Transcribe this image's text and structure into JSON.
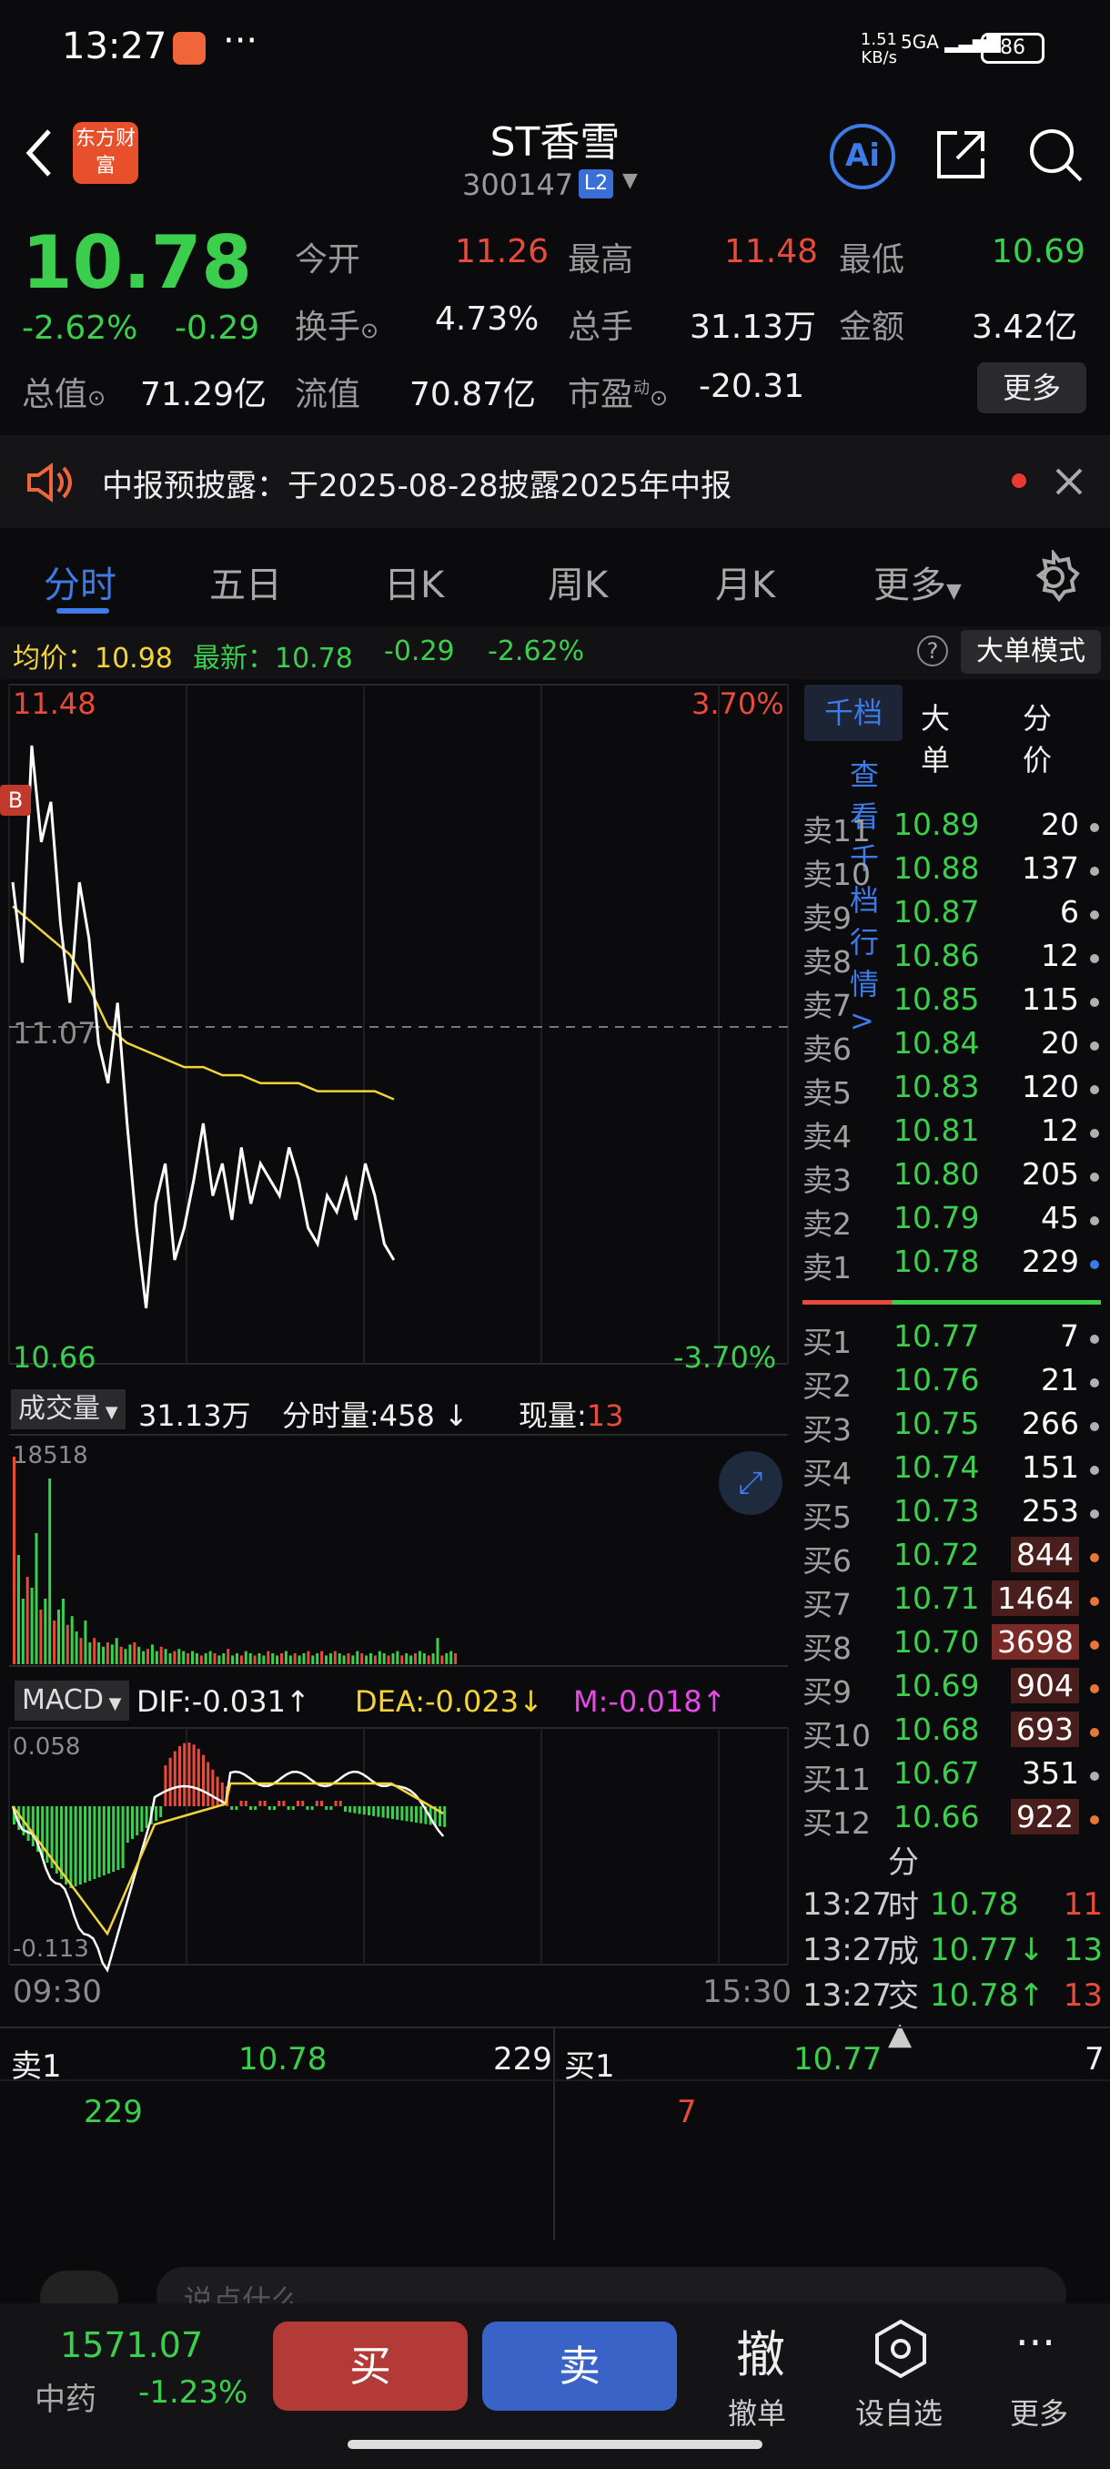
{
  "status": {
    "time": "13:27",
    "dots": "···",
    "speed_top": "1.51",
    "speed_unit": "KB/s",
    "net": "5GA",
    "battery": "86"
  },
  "header": {
    "title": "ST香雪",
    "code": "300147",
    "badge": "L2",
    "logo": "东方财富",
    "ai": "Ai"
  },
  "quote": {
    "price": "10.78",
    "pct": "-2.62%",
    "change": "-0.29",
    "open_label": "今开",
    "open": "11.26",
    "high_label": "最高",
    "high": "11.48",
    "low_label": "最低",
    "low": "10.69",
    "turnover_label": "换手",
    "turnover": "4.73%",
    "volume_label": "总手",
    "volume": "31.13万",
    "amount_label": "金额",
    "amount": "3.42亿",
    "mktcap_label": "总值",
    "mktcap": "71.29亿",
    "float_label": "流值",
    "float": "70.87亿",
    "pe_label": "市盈",
    "pe_sup": "动",
    "pe": "-20.31",
    "more": "更多"
  },
  "notice": {
    "text": "中报预披露：于2025-08-28披露2025年中报"
  },
  "tabs": [
    "分时",
    "五日",
    "日K",
    "周K",
    "月K",
    "更多"
  ],
  "avgbar": {
    "avg_label": "均价：",
    "avg": "10.98",
    "last_label": "最新：",
    "last": "10.78",
    "chg": "-0.29",
    "pct": "-2.62%",
    "help": "?",
    "bigmode": "大单模式"
  },
  "chart_data": {
    "type": "line",
    "price_axis": {
      "top": "11.48",
      "mid": "11.07",
      "bottom": "10.66",
      "top_pct": "3.70%",
      "bottom_pct": "-3.70%"
    },
    "marker": "B",
    "time_axis": [
      "09:30",
      "15:30"
    ],
    "price_series": [
      11.25,
      11.15,
      11.42,
      11.3,
      11.35,
      11.2,
      11.1,
      11.25,
      11.18,
      11.05,
      11.0,
      11.1,
      10.95,
      10.82,
      10.72,
      10.85,
      10.9,
      10.78,
      10.82,
      10.88,
      10.95,
      10.86,
      10.9,
      10.83,
      10.92,
      10.85,
      10.9,
      10.88,
      10.86,
      10.92,
      10.88,
      10.82,
      10.8,
      10.86,
      10.84,
      10.88,
      10.83,
      10.9,
      10.86,
      10.8,
      10.78
    ],
    "avg_series": [
      11.22,
      11.2,
      11.18,
      11.16,
      11.12,
      11.07,
      11.05,
      11.04,
      11.03,
      11.02,
      11.02,
      11.01,
      11.01,
      11.0,
      11.0,
      11.0,
      10.99,
      10.99,
      10.99,
      10.99,
      10.98
    ],
    "volume_label": "成交量",
    "volume_total": "31.13万",
    "tick_label": "分时量:458",
    "tick_arrow": "↓",
    "now_label": "现量:",
    "now": "13",
    "vol_max": "18518",
    "macd": {
      "label": "MACD",
      "dif_label": "DIF:-0.031",
      "dif_arrow": "↑",
      "dea_label": "DEA:-0.023",
      "dea_arrow": "↓",
      "m_label": "M:-0.018",
      "m_arrow": "↑",
      "top": "0.058",
      "bottom": "-0.113"
    }
  },
  "book_tabs": [
    "千档",
    "大单",
    "分价"
  ],
  "book_link": "查看千档行情 >",
  "asks": [
    {
      "label": "卖11",
      "price": "10.89",
      "vol": "20"
    },
    {
      "label": "卖10",
      "price": "10.88",
      "vol": "137"
    },
    {
      "label": "卖9",
      "price": "10.87",
      "vol": "6"
    },
    {
      "label": "卖8",
      "price": "10.86",
      "vol": "12"
    },
    {
      "label": "卖7",
      "price": "10.85",
      "vol": "115"
    },
    {
      "label": "卖6",
      "price": "10.84",
      "vol": "20"
    },
    {
      "label": "卖5",
      "price": "10.83",
      "vol": "120"
    },
    {
      "label": "卖4",
      "price": "10.81",
      "vol": "12"
    },
    {
      "label": "卖3",
      "price": "10.80",
      "vol": "205"
    },
    {
      "label": "卖2",
      "price": "10.79",
      "vol": "45"
    },
    {
      "label": "卖1",
      "price": "10.78",
      "vol": "229"
    }
  ],
  "bids": [
    {
      "label": "买1",
      "price": "10.77",
      "vol": "7"
    },
    {
      "label": "买2",
      "price": "10.76",
      "vol": "21"
    },
    {
      "label": "买3",
      "price": "10.75",
      "vol": "266"
    },
    {
      "label": "买4",
      "price": "10.74",
      "vol": "151"
    },
    {
      "label": "买5",
      "price": "10.73",
      "vol": "253"
    },
    {
      "label": "买6",
      "price": "10.72",
      "vol": "844"
    },
    {
      "label": "买7",
      "price": "10.71",
      "vol": "1464"
    },
    {
      "label": "买8",
      "price": "10.70",
      "vol": "3698"
    },
    {
      "label": "买9",
      "price": "10.69",
      "vol": "904"
    },
    {
      "label": "买10",
      "price": "10.68",
      "vol": "693"
    },
    {
      "label": "买11",
      "price": "10.67",
      "vol": "351"
    },
    {
      "label": "买12",
      "price": "10.66",
      "vol": "922"
    }
  ],
  "ticks_title": "分时成交",
  "ticks": [
    {
      "time": "13:27",
      "price": "10.78",
      "vol": "11",
      "arrow": ""
    },
    {
      "time": "13:27",
      "price": "10.77↓",
      "vol": "13",
      "arrow": "down"
    },
    {
      "time": "13:27",
      "price": "10.78↑",
      "vol": "13",
      "arrow": "up"
    }
  ],
  "level1": {
    "ask_label": "卖1",
    "ask_price": "10.78",
    "ask_vol": "229",
    "ask_sub": "229",
    "bid_label": "买1",
    "bid_price": "10.77",
    "bid_vol": "7",
    "bid_sub": "7"
  },
  "bottom": {
    "index_value": "1571.07",
    "index_name": "中药",
    "index_pct": "-1.23%",
    "buy": "买",
    "sell": "卖",
    "cancel_icon": "撤",
    "cancel": "撤单",
    "watch": "设自选",
    "more": "更多",
    "input_hint": "说点什么"
  },
  "colors": {
    "up": "#e84a3b",
    "down": "#3ccf4e",
    "accent": "#3c7be8",
    "avg": "#f2d43a"
  }
}
